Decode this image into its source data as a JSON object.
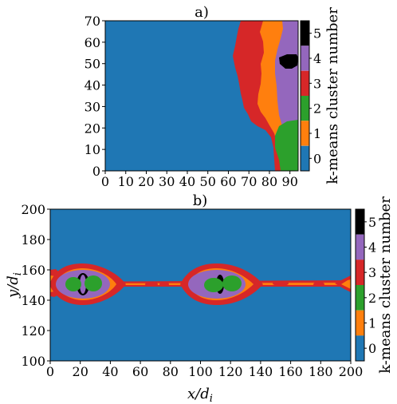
{
  "colors": {
    "cluster_0": "#1f77b4",
    "cluster_1": "#ff7f0e",
    "cluster_2": "#2ca02c",
    "cluster_3": "#d62728",
    "cluster_4": "#9467bd",
    "cluster_5": "#000000"
  },
  "chart_data": [
    {
      "type": "heatmap",
      "title": "a)",
      "xlabel": "",
      "ylabel": "",
      "xlim": [
        0,
        94
      ],
      "ylim": [
        0,
        70
      ],
      "x_ticks": [
        "0",
        "10",
        "20",
        "30",
        "40",
        "50",
        "60",
        "70",
        "80",
        "90"
      ],
      "y_ticks": [
        "0",
        "10",
        "20",
        "30",
        "40",
        "50",
        "60",
        "70"
      ],
      "colorbar_label": "k-means cluster number",
      "colorbar_ticks": [
        "0",
        "1",
        "2",
        "3",
        "4",
        "5"
      ],
      "regions_description_values": {
        "red_front_start_x_by_y": [
          [
            0,
            83
          ],
          [
            10,
            83
          ],
          [
            20,
            72
          ],
          [
            30,
            70
          ],
          [
            40,
            68
          ],
          [
            50,
            63
          ],
          [
            60,
            65
          ],
          [
            70,
            66
          ]
        ],
        "black_blob_center": [
          86,
          51
        ]
      },
      "grid": false
    },
    {
      "type": "heatmap",
      "title": "b)",
      "xlabel": "x/d_i",
      "ylabel": "y/d_i",
      "xlim": [
        0,
        200
      ],
      "ylim": [
        100,
        200
      ],
      "x_ticks": [
        "0",
        "20",
        "40",
        "60",
        "80",
        "100",
        "120",
        "140",
        "160",
        "180",
        "200"
      ],
      "y_ticks": [
        "100",
        "120",
        "140",
        "160",
        "180",
        "200"
      ],
      "colorbar_label": "k-means cluster number",
      "colorbar_ticks": [
        "0",
        "1",
        "2",
        "3",
        "4",
        "5"
      ],
      "islands_center_x": [
        22,
        115
      ],
      "islands_center_y": 150,
      "grid": false
    }
  ]
}
